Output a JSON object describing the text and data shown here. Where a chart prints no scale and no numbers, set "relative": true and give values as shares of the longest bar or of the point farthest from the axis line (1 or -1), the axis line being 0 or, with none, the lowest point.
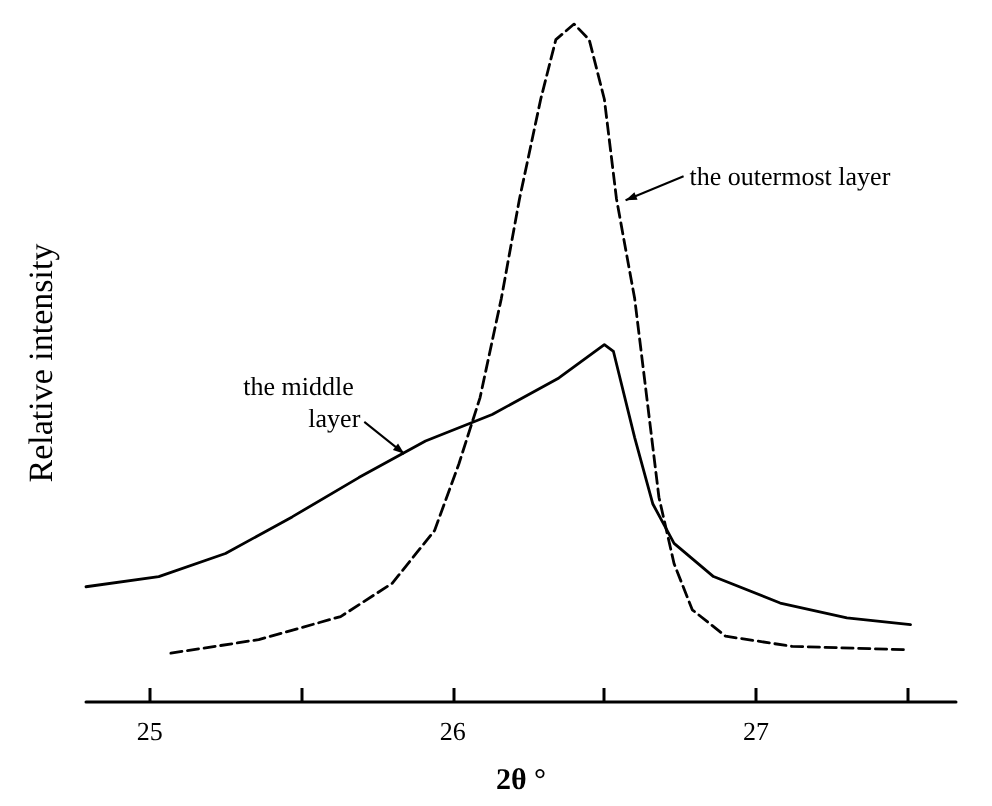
{
  "chart_data": {
    "type": "line",
    "relative": true,
    "xlabel": "2θ °",
    "ylabel": "Relative intensity",
    "xlim": [
      24.79,
      27.66
    ],
    "xticks": [
      25,
      {
        "value": 25.5,
        "label": null
      },
      26,
      {
        "value": 26.5,
        "label": null
      },
      27,
      {
        "value": 27.5,
        "label": null
      }
    ],
    "grid": false,
    "marker": "none",
    "series": [
      {
        "color": "#000000",
        "line_style": "dashed",
        "x": [
          25.07,
          25.36,
          25.63,
          25.8,
          25.94,
          26.02,
          26.09,
          26.16,
          26.22,
          26.29,
          26.34,
          26.4,
          26.45,
          26.5,
          26.54,
          26.6,
          26.64,
          26.68,
          26.73,
          26.79,
          26.9,
          27.12,
          27.5
        ],
        "values": [
          0.072,
          0.092,
          0.126,
          0.175,
          0.253,
          0.351,
          0.449,
          0.595,
          0.742,
          0.889,
          0.977,
          1,
          0.977,
          0.889,
          0.742,
          0.595,
          0.449,
          0.302,
          0.204,
          0.136,
          0.097,
          0.082,
          0.077
        ]
      },
      {
        "color": "#000000",
        "line_style": "solid",
        "x": [
          24.79,
          25.03,
          25.25,
          25.47,
          25.69,
          25.91,
          26.13,
          26.35,
          26.5,
          26.53,
          26.6,
          26.66,
          26.73,
          26.86,
          27.08,
          27.3,
          27.51
        ],
        "values": [
          0.17,
          0.185,
          0.219,
          0.273,
          0.331,
          0.385,
          0.424,
          0.478,
          0.527,
          0.517,
          0.39,
          0.292,
          0.234,
          0.185,
          0.146,
          0.124,
          0.114
        ]
      }
    ],
    "annotations": [
      {
        "text": "the outermost layer",
        "x": 26.57,
        "y": 0.74
      },
      {
        "text": "the middle layer",
        "x": 25.84,
        "y": 0.366
      }
    ]
  }
}
